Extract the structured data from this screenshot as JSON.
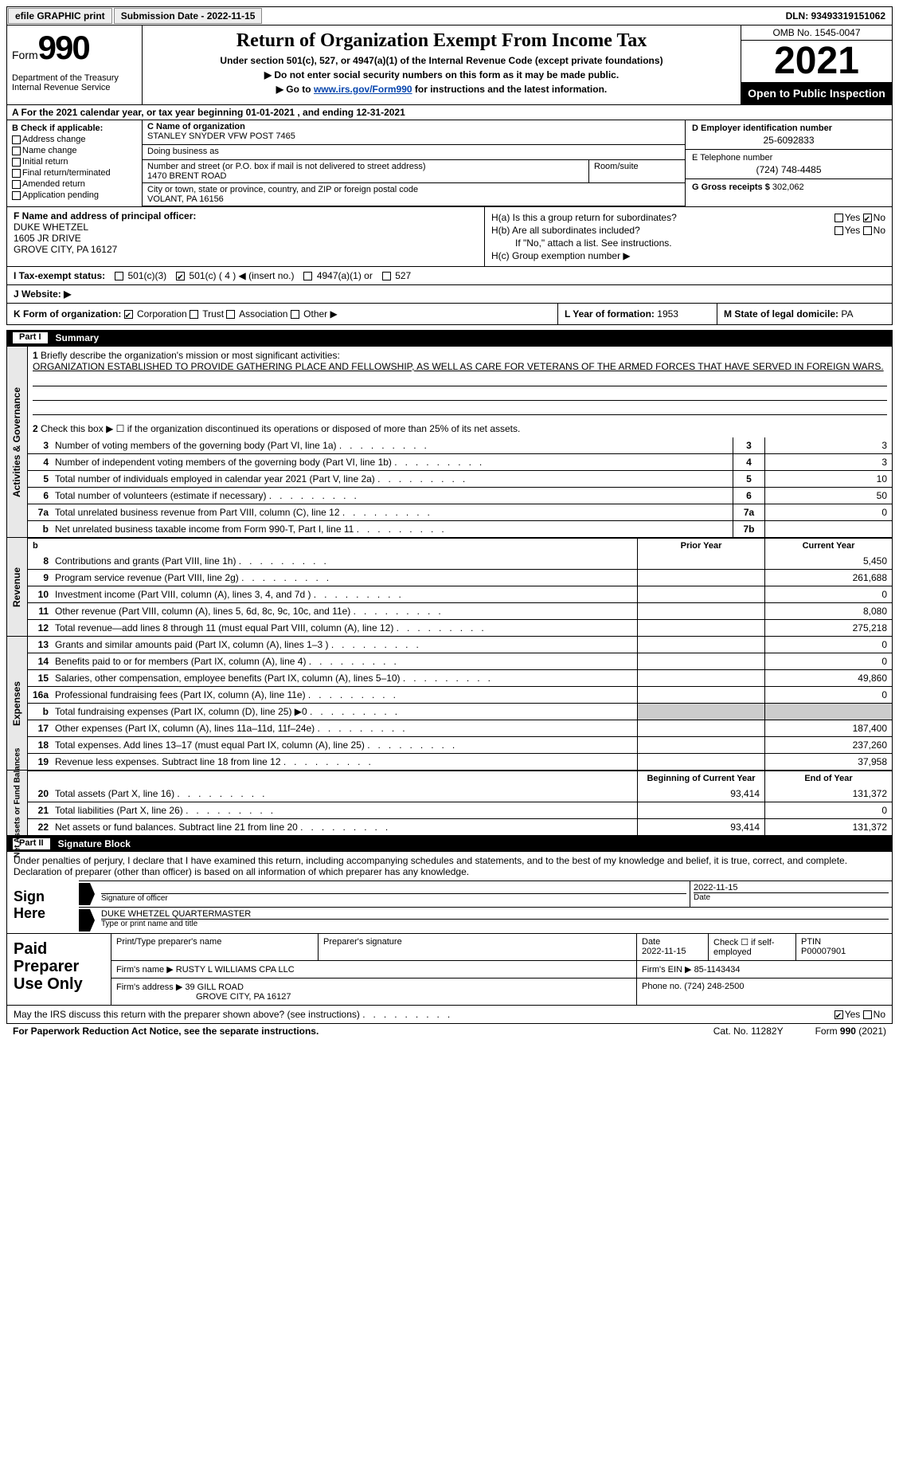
{
  "topbar": {
    "efile": "efile GRAPHIC print",
    "submission": "Submission Date - 2022-11-15",
    "dln": "DLN: 93493319151062"
  },
  "header": {
    "form_word": "Form",
    "form_num": "990",
    "title": "Return of Organization Exempt From Income Tax",
    "subtitle": "Under section 501(c), 527, or 4947(a)(1) of the Internal Revenue Code (except private foundations)",
    "line1": "▶ Do not enter social security numbers on this form as it may be made public.",
    "line2_pre": "▶ Go to ",
    "line2_link": "www.irs.gov/Form990",
    "line2_post": " for instructions and the latest information.",
    "dept": "Department of the Treasury\nInternal Revenue Service",
    "omb": "OMB No. 1545-0047",
    "year": "2021",
    "open": "Open to Public Inspection"
  },
  "row_a": "A For the 2021 calendar year, or tax year beginning 01-01-2021   , and ending 12-31-2021",
  "section_b": {
    "label": "B Check if applicable:",
    "items": [
      "Address change",
      "Name change",
      "Initial return",
      "Final return/terminated",
      "Amended return",
      "Application pending"
    ]
  },
  "section_c": {
    "name_label": "C Name of organization",
    "name": "STANLEY SNYDER VFW POST 7465",
    "dba_label": "Doing business as",
    "dba": "",
    "street_label": "Number and street (or P.O. box if mail is not delivered to street address)",
    "street": "1470 BRENT ROAD",
    "room_label": "Room/suite",
    "room": "",
    "city_label": "City or town, state or province, country, and ZIP or foreign postal code",
    "city": "VOLANT, PA  16156"
  },
  "section_d": {
    "ein_label": "D Employer identification number",
    "ein": "25-6092833",
    "phone_label": "E Telephone number",
    "phone": "(724) 748-4485",
    "gross_label": "G Gross receipts $",
    "gross": "302,062"
  },
  "section_f": {
    "label": "F  Name and address of principal officer:",
    "name": "DUKE WHETZEL",
    "addr1": "1605 JR DRIVE",
    "addr2": "GROVE CITY, PA  16127"
  },
  "section_h": {
    "ha": "H(a)  Is this a group return for subordinates?",
    "ha_yes": "Yes",
    "ha_no": "No",
    "ha_checked": "No",
    "hb": "H(b)  Are all subordinates included?",
    "hb_note": "If \"No,\" attach a list. See instructions.",
    "hc": "H(c)  Group exemption number ▶"
  },
  "section_i": {
    "label": "I   Tax-exempt status:",
    "opts": [
      "501(c)(3)",
      "501(c) ( 4 ) ◀ (insert no.)",
      "4947(a)(1) or",
      "527"
    ],
    "checked": 1
  },
  "section_j": {
    "label": "J   Website: ▶"
  },
  "section_k": {
    "label": "K Form of organization:",
    "opts": [
      "Corporation",
      "Trust",
      "Association",
      "Other ▶"
    ],
    "checked": 0
  },
  "section_l": {
    "label": "L Year of formation:",
    "val": "1953"
  },
  "section_m": {
    "label": "M State of legal domicile:",
    "val": "PA"
  },
  "part1": {
    "hdr_num": "Part I",
    "hdr_txt": "Summary",
    "side1": "Activities & Governance",
    "side2": "Revenue",
    "side3": "Expenses",
    "side4": "Net Assets or Fund Balances",
    "q1": "Briefly describe the organization's mission or most significant activities:",
    "mission": "ORGANIZATION ESTABLISHED TO PROVIDE GATHERING PLACE AND FELLOWSHIP, AS WELL AS CARE FOR VETERANS OF THE ARMED FORCES THAT HAVE SERVED IN FOREIGN WARS.",
    "q2": "Check this box ▶ ☐ if the organization discontinued its operations or disposed of more than 25% of its net assets.",
    "lines_ag": [
      {
        "n": "3",
        "t": "Number of voting members of the governing body (Part VI, line 1a)",
        "box": "3",
        "v": "3"
      },
      {
        "n": "4",
        "t": "Number of independent voting members of the governing body (Part VI, line 1b)",
        "box": "4",
        "v": "3"
      },
      {
        "n": "5",
        "t": "Total number of individuals employed in calendar year 2021 (Part V, line 2a)",
        "box": "5",
        "v": "10"
      },
      {
        "n": "6",
        "t": "Total number of volunteers (estimate if necessary)",
        "box": "6",
        "v": "50"
      },
      {
        "n": "7a",
        "t": "Total unrelated business revenue from Part VIII, column (C), line 12",
        "box": "7a",
        "v": "0"
      },
      {
        "n": "b",
        "t": "Net unrelated business taxable income from Form 990-T, Part I, line 11",
        "box": "7b",
        "v": ""
      }
    ],
    "col_prior": "Prior Year",
    "col_current": "Current Year",
    "col_begin": "Beginning of Current Year",
    "col_end": "End of Year",
    "lines_rev": [
      {
        "n": "8",
        "t": "Contributions and grants (Part VIII, line 1h)",
        "p": "",
        "c": "5,450"
      },
      {
        "n": "9",
        "t": "Program service revenue (Part VIII, line 2g)",
        "p": "",
        "c": "261,688"
      },
      {
        "n": "10",
        "t": "Investment income (Part VIII, column (A), lines 3, 4, and 7d )",
        "p": "",
        "c": "0"
      },
      {
        "n": "11",
        "t": "Other revenue (Part VIII, column (A), lines 5, 6d, 8c, 9c, 10c, and 11e)",
        "p": "",
        "c": "8,080"
      },
      {
        "n": "12",
        "t": "Total revenue—add lines 8 through 11 (must equal Part VIII, column (A), line 12)",
        "p": "",
        "c": "275,218"
      }
    ],
    "lines_exp": [
      {
        "n": "13",
        "t": "Grants and similar amounts paid (Part IX, column (A), lines 1–3 )",
        "p": "",
        "c": "0"
      },
      {
        "n": "14",
        "t": "Benefits paid to or for members (Part IX, column (A), line 4)",
        "p": "",
        "c": "0"
      },
      {
        "n": "15",
        "t": "Salaries, other compensation, employee benefits (Part IX, column (A), lines 5–10)",
        "p": "",
        "c": "49,860"
      },
      {
        "n": "16a",
        "t": "Professional fundraising fees (Part IX, column (A), line 11e)",
        "p": "",
        "c": "0"
      },
      {
        "n": "b",
        "t": "Total fundraising expenses (Part IX, column (D), line 25) ▶0",
        "p": "shade",
        "c": "shade"
      },
      {
        "n": "17",
        "t": "Other expenses (Part IX, column (A), lines 11a–11d, 11f–24e)",
        "p": "",
        "c": "187,400"
      },
      {
        "n": "18",
        "t": "Total expenses. Add lines 13–17 (must equal Part IX, column (A), line 25)",
        "p": "",
        "c": "237,260"
      },
      {
        "n": "19",
        "t": "Revenue less expenses. Subtract line 18 from line 12",
        "p": "",
        "c": "37,958"
      }
    ],
    "lines_na": [
      {
        "n": "20",
        "t": "Total assets (Part X, line 16)",
        "p": "93,414",
        "c": "131,372"
      },
      {
        "n": "21",
        "t": "Total liabilities (Part X, line 26)",
        "p": "",
        "c": "0"
      },
      {
        "n": "22",
        "t": "Net assets or fund balances. Subtract line 21 from line 20",
        "p": "93,414",
        "c": "131,372"
      }
    ]
  },
  "part2": {
    "hdr_num": "Part II",
    "hdr_txt": "Signature Block",
    "declare": "Under penalties of perjury, I declare that I have examined this return, including accompanying schedules and statements, and to the best of my knowledge and belief, it is true, correct, and complete. Declaration of preparer (other than officer) is based on all information of which preparer has any knowledge.",
    "sign_here": "Sign Here",
    "sig_officer": "Signature of officer",
    "sig_date": "2022-11-15",
    "date_label": "Date",
    "sig_name": "DUKE WHETZEL QUARTERMASTER",
    "sig_name_label": "Type or print name and title"
  },
  "paid": {
    "label": "Paid Preparer Use Only",
    "r1": {
      "c1l": "Print/Type preparer's name",
      "c1": "",
      "c2l": "Preparer's signature",
      "c2": "",
      "c3l": "Date",
      "c3": "2022-11-15",
      "c4l": "Check ☐ if self-employed",
      "c5l": "PTIN",
      "c5": "P00007901"
    },
    "r2": {
      "c1l": "Firm's name    ▶",
      "c1": "RUSTY L WILLIAMS CPA LLC",
      "c2l": "Firm's EIN ▶",
      "c2": "85-1143434"
    },
    "r3": {
      "c1l": "Firm's address ▶",
      "c1": "39 GILL ROAD",
      "c1b": "GROVE CITY, PA  16127",
      "c2l": "Phone no.",
      "c2": "(724) 248-2500"
    }
  },
  "discuss": {
    "txt": "May the IRS discuss this return with the preparer shown above? (see instructions)",
    "yes": "Yes",
    "no": "No",
    "checked": "Yes"
  },
  "footer": {
    "f1": "For Paperwork Reduction Act Notice, see the separate instructions.",
    "f2": "Cat. No. 11282Y",
    "f3": "Form 990 (2021)"
  }
}
